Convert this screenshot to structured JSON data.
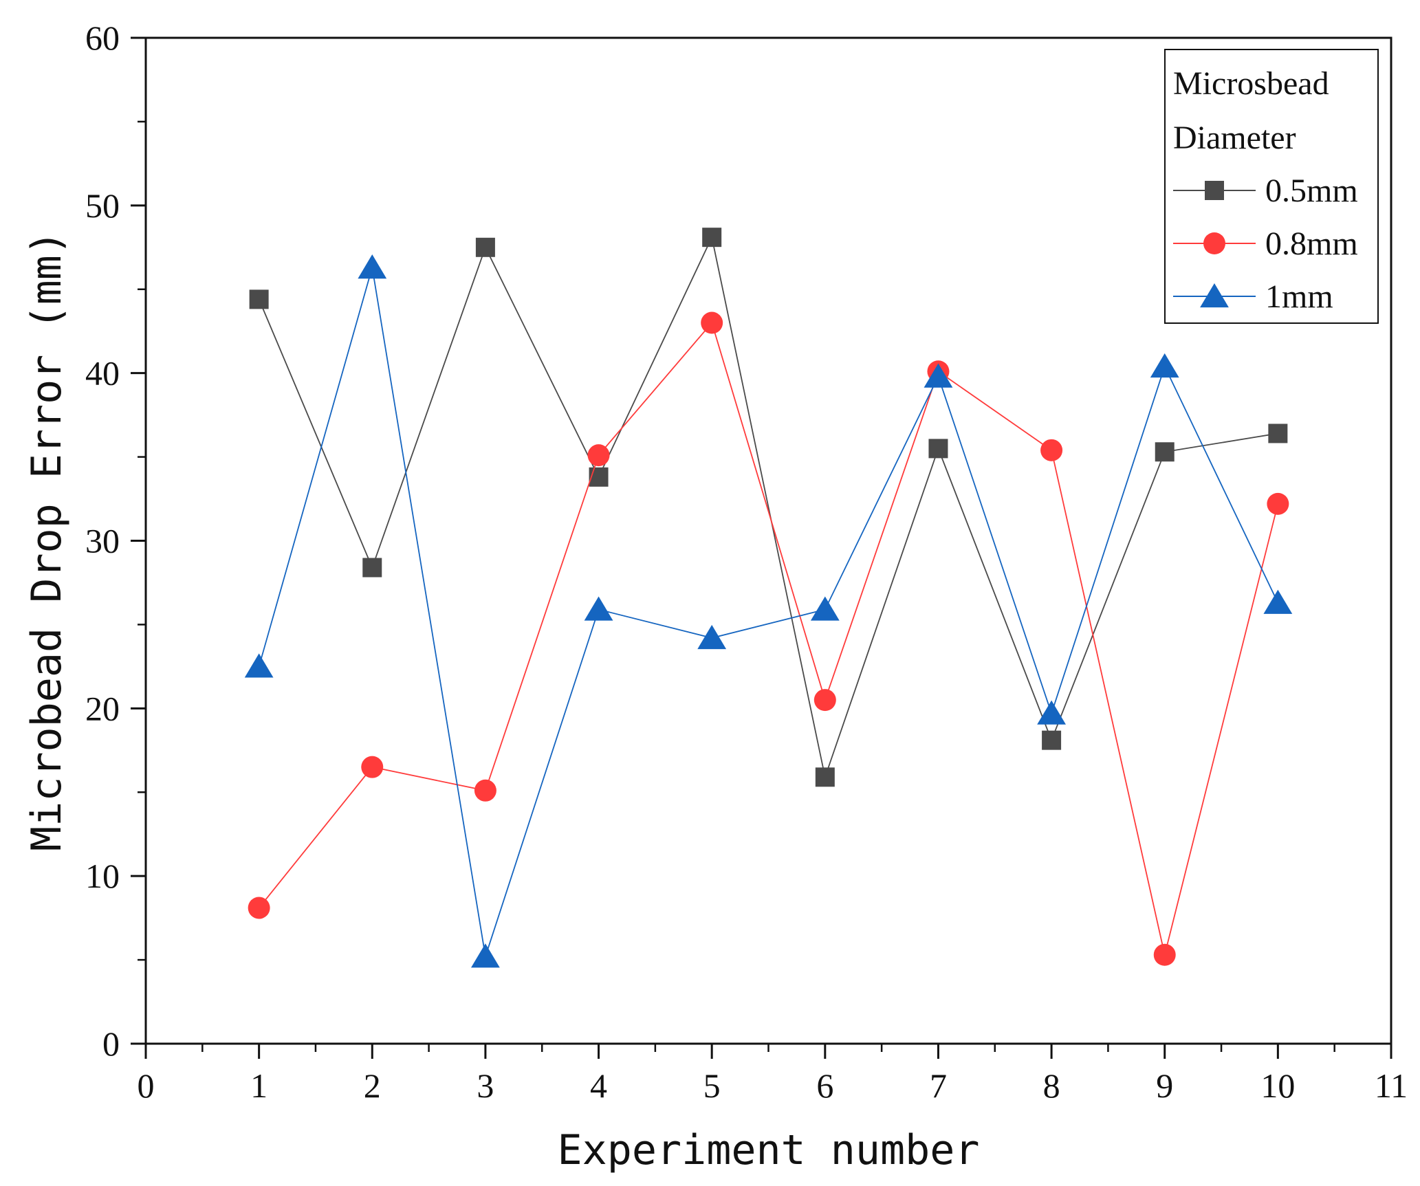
{
  "chart_data": {
    "type": "line",
    "title": "",
    "xlabel": "Experiment number",
    "ylabel": "Microbead Drop Error (mm)",
    "xlim": [
      0,
      11
    ],
    "ylim": [
      0,
      60
    ],
    "x_ticks": [
      0,
      1,
      2,
      3,
      4,
      5,
      6,
      7,
      8,
      9,
      10,
      11
    ],
    "y_ticks": [
      0,
      10,
      20,
      30,
      40,
      50,
      60
    ],
    "grid": false,
    "legend": {
      "title_lines": [
        "Microsbead",
        "Diameter"
      ],
      "position": "top-right"
    },
    "x": [
      1,
      2,
      3,
      4,
      5,
      6,
      7,
      8,
      9,
      10
    ],
    "series": [
      {
        "name": "0.5mm",
        "color": "#4a4a4a",
        "marker": "square",
        "values": [
          44.4,
          28.4,
          47.5,
          33.8,
          48.1,
          15.9,
          35.5,
          18.1,
          35.3,
          36.4
        ]
      },
      {
        "name": "0.8mm",
        "color": "#ff3b3b",
        "marker": "circle",
        "values": [
          8.1,
          16.5,
          15.1,
          35.1,
          43.0,
          20.5,
          40.1,
          35.4,
          5.3,
          32.2
        ]
      },
      {
        "name": "1mm",
        "color": "#1565c0",
        "marker": "triangle",
        "values": [
          22.5,
          46.3,
          5.2,
          25.9,
          24.2,
          25.9,
          39.8,
          19.7,
          40.4,
          26.3
        ]
      }
    ]
  }
}
